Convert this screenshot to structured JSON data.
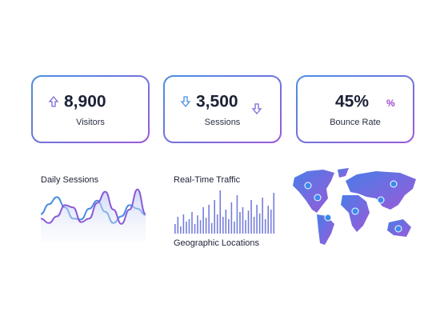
{
  "cards": [
    {
      "value": "8,900",
      "label": "Visitors"
    },
    {
      "value": "3,500",
      "label": "Sessions"
    },
    {
      "value": "45%",
      "label": "Bounce Rate",
      "icon": "%"
    }
  ],
  "daily_sessions": {
    "title": "Daily Sessions",
    "series": [
      {
        "color": "#4a8fe0",
        "values": [
          40,
          62,
          78,
          55,
          30,
          28,
          52,
          70,
          45,
          20,
          35,
          60,
          52,
          38
        ]
      },
      {
        "color": "#8a5ad8",
        "values": [
          30,
          20,
          35,
          60,
          55,
          22,
          30,
          65,
          90,
          50,
          18,
          50,
          95,
          40
        ]
      }
    ]
  },
  "real_time_traffic": {
    "title": "Real-Time Traffic",
    "values": [
      20,
      35,
      15,
      40,
      25,
      30,
      45,
      20,
      38,
      28,
      55,
      33,
      60,
      22,
      70,
      40,
      90,
      35,
      50,
      30,
      65,
      25,
      80,
      45,
      55,
      28,
      48,
      70,
      35,
      60,
      42,
      75,
      30,
      58,
      50,
      85
    ]
  },
  "geographic_locations": {
    "title": "Geographic Locations"
  }
}
